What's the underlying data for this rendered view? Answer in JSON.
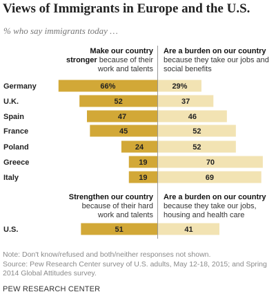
{
  "title": "Views of Immigrants in Europe and the U.S.",
  "subtitle": "% who say immigrants today …",
  "europe_header": {
    "left_bold": "Make our country stronger",
    "left_rest": "because of their work and talents",
    "right_bold": "Are a burden on our country",
    "right_rest": "because they take our jobs and social benefits"
  },
  "us_header": {
    "left_bold": "Strengthen our country",
    "left_rest": "because of their hard work and talents",
    "right_bold": "Are a burden on our country",
    "right_rest": "because they take our jobs, housing and health care"
  },
  "note": "Note: Don't know/refused and both/neither responses not shown.",
  "source_line1": "Source: Pew Research Center survey of U.S. adults, May 12-18, 2015; and Spring",
  "source_line2": "2014 Global Attitudes survey.",
  "brand": "PEW RESEARCH CENTER",
  "colors": {
    "stronger": "#d2a837",
    "burden": "#f2e3b3",
    "divider": "#999999"
  },
  "chart_data": {
    "type": "bar",
    "orientation": "diverging-horizontal",
    "categories": [
      "Germany",
      "U.K.",
      "Spain",
      "France",
      "Poland",
      "Greece",
      "Italy",
      "U.S."
    ],
    "value_labels": {
      "stronger": [
        "66%",
        "52",
        "47",
        "45",
        "24",
        "19",
        "19",
        "51"
      ],
      "burden": [
        "29%",
        "37",
        "46",
        "52",
        "52",
        "70",
        "69",
        "41"
      ]
    },
    "series": [
      {
        "name": "stronger",
        "values": [
          66,
          52,
          47,
          45,
          24,
          19,
          19,
          51
        ]
      },
      {
        "name": "burden",
        "values": [
          29,
          37,
          46,
          52,
          52,
          70,
          69,
          41
        ]
      }
    ],
    "xlim": [
      0,
      100
    ]
  }
}
